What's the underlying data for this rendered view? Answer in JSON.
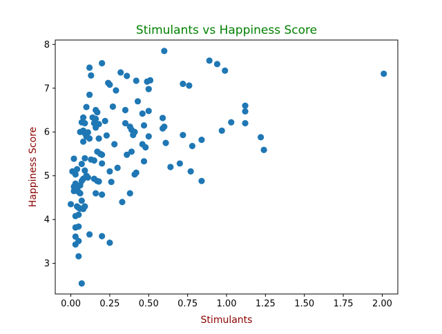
{
  "chart_data": {
    "type": "scatter",
    "title": "Stimulants vs Happiness Score",
    "xlabel": "Stimulants",
    "ylabel": "Happiness Score",
    "xlim": [
      -0.1,
      2.1
    ],
    "ylim": [
      2.3,
      8.1
    ],
    "grid": false,
    "x_ticks": [
      0.0,
      0.25,
      0.5,
      0.75,
      1.0,
      1.25,
      1.5,
      1.75,
      2.0
    ],
    "x_tick_labels": [
      "0.00",
      "0.25",
      "0.50",
      "0.75",
      "1.00",
      "1.25",
      "1.50",
      "1.75",
      "2.00"
    ],
    "y_ticks": [
      3,
      4,
      5,
      6,
      7,
      8
    ],
    "y_tick_labels": [
      "3",
      "4",
      "5",
      "6",
      "7",
      "8"
    ],
    "colors": {
      "points": "#1f77b4",
      "title": "#008000",
      "axis_labels": "#8b0000"
    },
    "series": [
      {
        "points": [
          [
            0.01,
            5.1
          ],
          [
            0.03,
            5.03
          ],
          [
            0.04,
            5.15
          ],
          [
            0.02,
            5.39
          ],
          [
            0.0,
            4.35
          ],
          [
            0.02,
            4.75
          ],
          [
            0.02,
            4.65
          ],
          [
            0.03,
            4.82
          ],
          [
            0.04,
            4.7
          ],
          [
            0.05,
            4.63
          ],
          [
            0.06,
            4.78
          ],
          [
            0.04,
            4.3
          ],
          [
            0.05,
            4.27
          ],
          [
            0.06,
            4.25
          ],
          [
            0.07,
            4.43
          ],
          [
            0.08,
            4.24
          ],
          [
            0.09,
            4.3
          ],
          [
            0.05,
            4.11
          ],
          [
            0.03,
            4.08
          ],
          [
            0.03,
            3.82
          ],
          [
            0.05,
            3.84
          ],
          [
            0.03,
            3.61
          ],
          [
            0.05,
            3.51
          ],
          [
            0.03,
            3.43
          ],
          [
            0.05,
            3.16
          ],
          [
            0.07,
            2.54
          ],
          [
            0.07,
            4.88
          ],
          [
            0.08,
            4.93
          ],
          [
            0.09,
            5.12
          ],
          [
            0.1,
            5.0
          ],
          [
            0.11,
            4.96
          ],
          [
            0.07,
            5.27
          ],
          [
            0.09,
            5.4
          ],
          [
            0.06,
            4.6
          ],
          [
            0.07,
            6.22
          ],
          [
            0.08,
            6.33
          ],
          [
            0.09,
            6.2
          ],
          [
            0.06,
            6.0
          ],
          [
            0.08,
            6.03
          ],
          [
            0.09,
            5.97
          ],
          [
            0.1,
            5.9
          ],
          [
            0.11,
            5.99
          ],
          [
            0.12,
            5.85
          ],
          [
            0.08,
            5.78
          ],
          [
            0.1,
            6.57
          ],
          [
            0.12,
            6.85
          ],
          [
            0.13,
            7.29
          ],
          [
            0.12,
            7.47
          ],
          [
            0.14,
            6.33
          ],
          [
            0.16,
            6.5
          ],
          [
            0.17,
            6.45
          ],
          [
            0.16,
            6.3
          ],
          [
            0.15,
            6.2
          ],
          [
            0.16,
            6.1
          ],
          [
            0.18,
            6.18
          ],
          [
            0.18,
            5.85
          ],
          [
            0.13,
            5.37
          ],
          [
            0.15,
            5.35
          ],
          [
            0.17,
            5.55
          ],
          [
            0.19,
            5.5
          ],
          [
            0.2,
            5.48
          ],
          [
            0.2,
            5.28
          ],
          [
            0.15,
            4.93
          ],
          [
            0.17,
            4.88
          ],
          [
            0.18,
            4.87
          ],
          [
            0.16,
            4.6
          ],
          [
            0.2,
            4.57
          ],
          [
            0.2,
            3.62
          ],
          [
            0.12,
            3.66
          ],
          [
            0.25,
            3.47
          ],
          [
            0.2,
            7.57
          ],
          [
            0.24,
            7.12
          ],
          [
            0.25,
            7.08
          ],
          [
            0.22,
            6.25
          ],
          [
            0.23,
            5.92
          ],
          [
            0.25,
            5.1
          ],
          [
            0.26,
            4.86
          ],
          [
            0.27,
            6.58
          ],
          [
            0.28,
            5.72
          ],
          [
            0.29,
            6.95
          ],
          [
            0.3,
            5.18
          ],
          [
            0.32,
            7.36
          ],
          [
            0.33,
            4.4
          ],
          [
            0.35,
            6.5
          ],
          [
            0.35,
            6.2
          ],
          [
            0.36,
            7.28
          ],
          [
            0.36,
            5.48
          ],
          [
            0.38,
            6.12
          ],
          [
            0.39,
            6.05
          ],
          [
            0.39,
            5.55
          ],
          [
            0.38,
            4.6
          ],
          [
            0.4,
            5.93
          ],
          [
            0.41,
            6.0
          ],
          [
            0.41,
            5.03
          ],
          [
            0.42,
            5.07
          ],
          [
            0.42,
            7.17
          ],
          [
            0.43,
            6.7
          ],
          [
            0.46,
            5.72
          ],
          [
            0.46,
            6.42
          ],
          [
            0.47,
            6.15
          ],
          [
            0.47,
            5.33
          ],
          [
            0.48,
            5.65
          ],
          [
            0.49,
            7.15
          ],
          [
            0.5,
            6.48
          ],
          [
            0.5,
            6.98
          ],
          [
            0.51,
            7.18
          ],
          [
            0.5,
            5.9
          ],
          [
            0.6,
            7.85
          ],
          [
            0.59,
            6.32
          ],
          [
            0.59,
            6.08
          ],
          [
            0.6,
            6.12
          ],
          [
            0.61,
            5.75
          ],
          [
            0.64,
            5.2
          ],
          [
            0.7,
            5.28
          ],
          [
            0.72,
            7.1
          ],
          [
            0.72,
            5.93
          ],
          [
            0.76,
            7.06
          ],
          [
            0.77,
            5.1
          ],
          [
            0.78,
            5.68
          ],
          [
            0.84,
            5.82
          ],
          [
            0.84,
            4.88
          ],
          [
            0.89,
            7.63
          ],
          [
            0.94,
            7.55
          ],
          [
            0.97,
            6.03
          ],
          [
            0.99,
            7.4
          ],
          [
            1.03,
            6.22
          ],
          [
            1.12,
            6.6
          ],
          [
            1.12,
            6.47
          ],
          [
            1.12,
            6.2
          ],
          [
            1.22,
            5.88
          ],
          [
            1.24,
            5.59
          ],
          [
            2.01,
            7.33
          ]
        ]
      }
    ]
  }
}
